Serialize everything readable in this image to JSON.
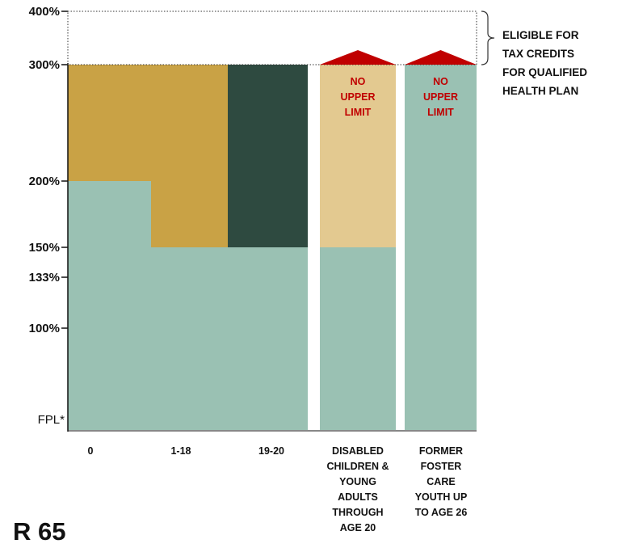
{
  "chart_data": {
    "type": "bar",
    "yaxis": {
      "ticks": [
        {
          "value": 0,
          "label": "FPL*"
        },
        {
          "value": 100,
          "label": "100%"
        },
        {
          "value": 133,
          "label": "133%"
        },
        {
          "value": 150,
          "label": "150%"
        },
        {
          "value": 200,
          "label": "200%"
        },
        {
          "value": 300,
          "label": "300%"
        },
        {
          "value": 400,
          "label": "400%"
        }
      ],
      "ylim": [
        0,
        400
      ]
    },
    "categories": [
      {
        "id": "age-0",
        "label_lines": [
          "0"
        ]
      },
      {
        "id": "age-1-18",
        "label_lines": [
          "1-18"
        ]
      },
      {
        "id": "age-19-20",
        "label_lines": [
          "19-20"
        ]
      },
      {
        "id": "disabled",
        "label_lines": [
          "DISABLED",
          "CHILDREN &",
          "YOUNG",
          "ADULTS",
          "THROUGH",
          "AGE 20"
        ]
      },
      {
        "id": "foster",
        "label_lines": [
          "FORMER",
          "FOSTER",
          "CARE",
          "YOUTH UP",
          "TO AGE 26"
        ]
      }
    ],
    "segments": [
      {
        "category": "age-0",
        "from": 0,
        "to": 200,
        "color": "#9ac1b3"
      },
      {
        "category": "age-0",
        "from": 200,
        "to": 300,
        "color": "#c9a245"
      },
      {
        "category": "age-1-18",
        "from": 0,
        "to": 150,
        "color": "#9ac1b3"
      },
      {
        "category": "age-1-18",
        "from": 150,
        "to": 300,
        "color": "#c9a245"
      },
      {
        "category": "age-19-20",
        "from": 0,
        "to": 150,
        "color": "#9ac1b3"
      },
      {
        "category": "age-19-20",
        "from": 150,
        "to": 300,
        "color": "#2e4a40"
      },
      {
        "category": "disabled",
        "from": 0,
        "to": 150,
        "color": "#9ac1b3"
      },
      {
        "category": "disabled",
        "from": 150,
        "to": 300,
        "color": "#e3c990"
      },
      {
        "category": "foster",
        "from": 0,
        "to": 300,
        "color": "#9ac1b3"
      }
    ],
    "no_upper_limit": [
      {
        "category": "disabled",
        "label_lines": [
          "NO",
          "UPPER",
          "LIMIT"
        ],
        "arrow_color": "#c00000"
      },
      {
        "category": "foster",
        "label_lines": [
          "NO",
          "UPPER",
          "LIMIT"
        ],
        "arrow_color": "#c00000"
      }
    ],
    "tax_credit_band": {
      "from": 300,
      "to": 400,
      "label_lines": [
        "ELIGIBLE FOR",
        "TAX CREDITS",
        "FOR QUALIFIED",
        "HEALTH PLAN"
      ]
    }
  },
  "partial_title": "R 65"
}
